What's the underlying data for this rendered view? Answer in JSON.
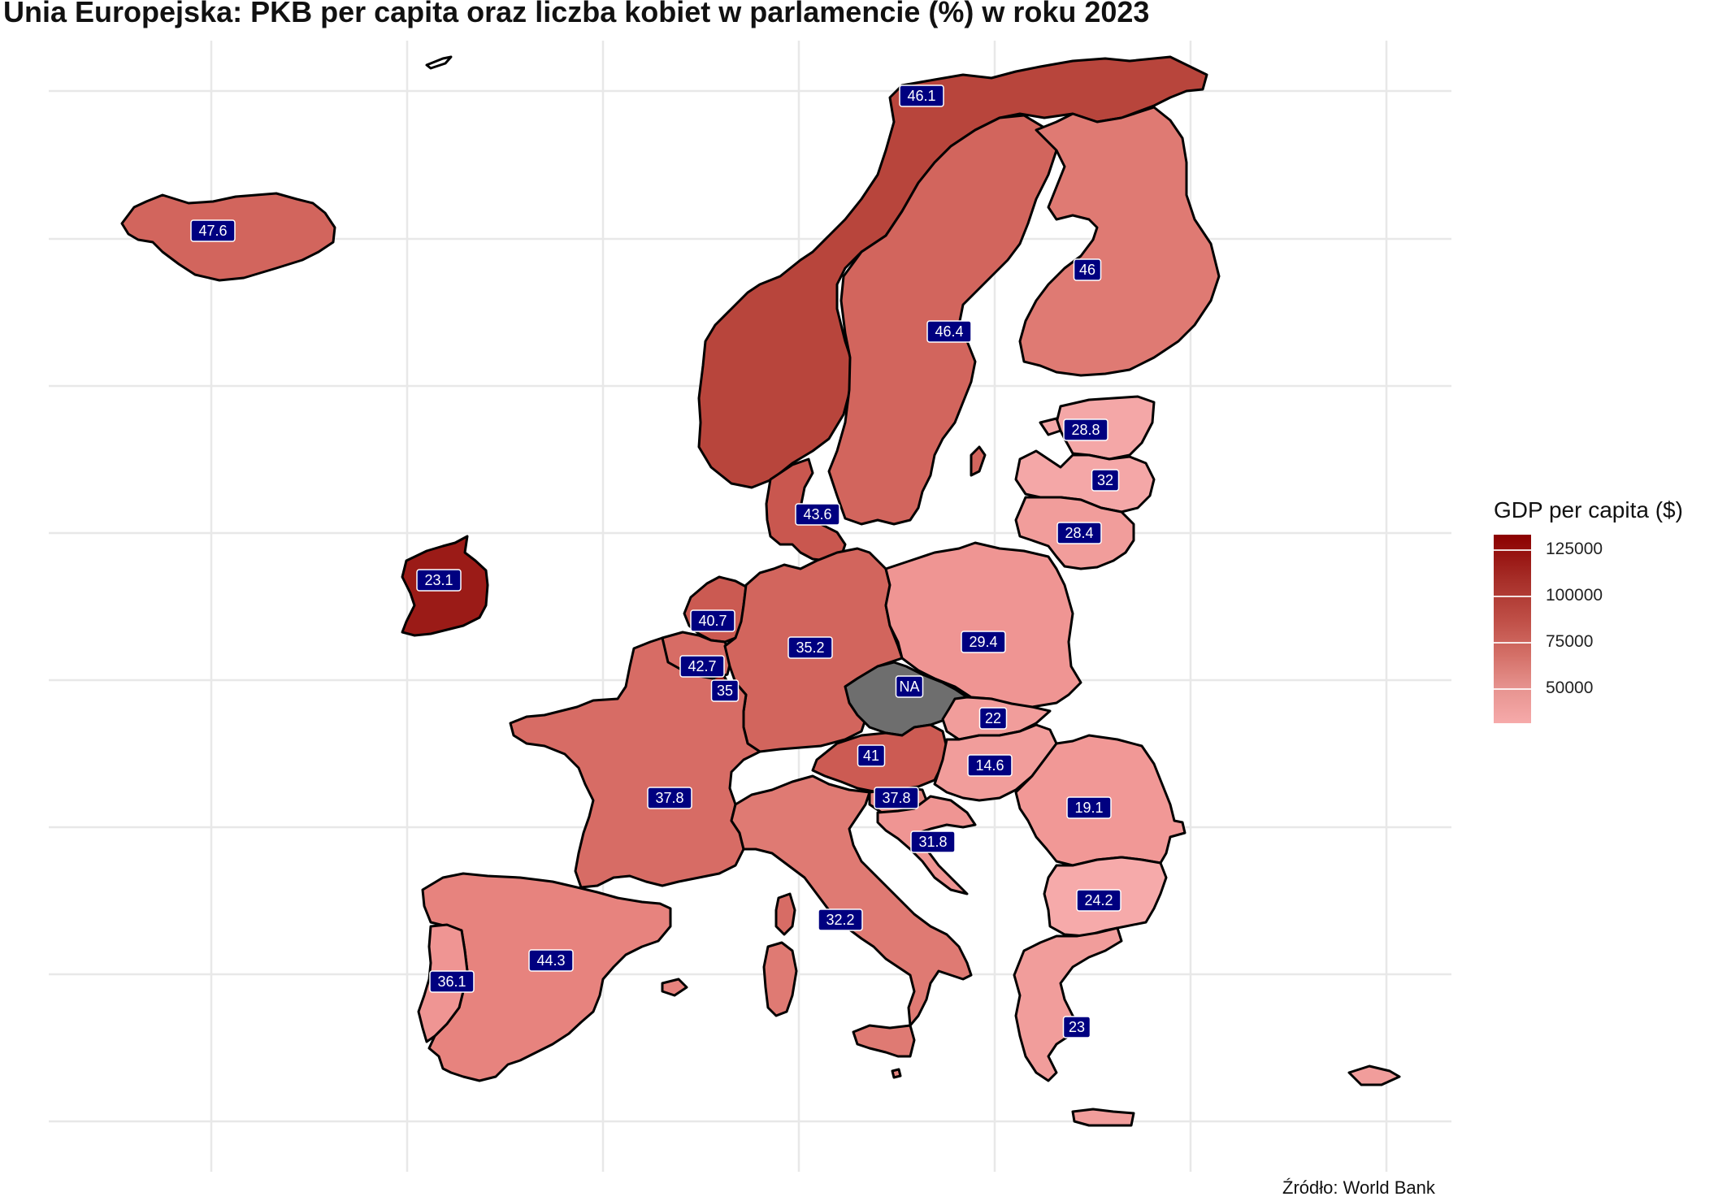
{
  "title": "Unia Europejska: PKB per capita oraz liczba kobiet w parlamencie (%) w roku 2023",
  "caption": "Źródło: World Bank",
  "legend": {
    "title": "GDP per capita ($)",
    "ticks": [
      "125000",
      "100000",
      "75000",
      "50000"
    ],
    "colors": {
      "high": "#8b0000",
      "low": "#f6aaaa",
      "na": "#6e6e6e"
    }
  },
  "countries": [
    {
      "id": "iceland",
      "label": "47.6",
      "fill": "#d2655d"
    },
    {
      "id": "norway",
      "label": "46.1",
      "fill": "#b8453c"
    },
    {
      "id": "sweden",
      "label": "46.4",
      "fill": "#d2655d"
    },
    {
      "id": "finland",
      "label": "46",
      "fill": "#df7a73"
    },
    {
      "id": "estonia",
      "label": "28.8",
      "fill": "#f4a7a7"
    },
    {
      "id": "latvia",
      "label": "32",
      "fill": "#f4a7a7"
    },
    {
      "id": "lithuania",
      "label": "28.4",
      "fill": "#f19d9b"
    },
    {
      "id": "denmark",
      "label": "43.6",
      "fill": "#c9574f"
    },
    {
      "id": "ireland",
      "label": "23.1",
      "fill": "#9b1b17"
    },
    {
      "id": "netherlands",
      "label": "40.7",
      "fill": "#cb5a52"
    },
    {
      "id": "belgium",
      "label": "42.7",
      "fill": "#d76c65"
    },
    {
      "id": "luxembourg",
      "label": "35",
      "fill": "#9b1b17"
    },
    {
      "id": "germany",
      "label": "35.2",
      "fill": "#d2655d"
    },
    {
      "id": "poland",
      "label": "29.4",
      "fill": "#ef9593"
    },
    {
      "id": "czechia",
      "label": "NA",
      "fill": "#6e6e6e"
    },
    {
      "id": "slovakia",
      "label": "22",
      "fill": "#f19d9b"
    },
    {
      "id": "austria",
      "label": "41",
      "fill": "#cc5b53"
    },
    {
      "id": "hungary",
      "label": "14.6",
      "fill": "#f19d9b"
    },
    {
      "id": "romania",
      "label": "19.1",
      "fill": "#f19896"
    },
    {
      "id": "slovenia",
      "label": "37.8",
      "fill": "#e4857f"
    },
    {
      "id": "croatia",
      "label": "31.8",
      "fill": "#ef9593"
    },
    {
      "id": "france",
      "label": "37.8",
      "fill": "#d76c65"
    },
    {
      "id": "italy",
      "label": "32.2",
      "fill": "#df7a73"
    },
    {
      "id": "bulgaria",
      "label": "24.2",
      "fill": "#f6aaaa"
    },
    {
      "id": "greece",
      "label": "23",
      "fill": "#f19d9b"
    },
    {
      "id": "spain",
      "label": "44.3",
      "fill": "#e7837e"
    },
    {
      "id": "portugal",
      "label": "36.1",
      "fill": "#ef9593"
    },
    {
      "id": "cyprus",
      "label": "",
      "fill": "#f19d9b"
    },
    {
      "id": "malta",
      "label": "",
      "fill": "#e4857f"
    }
  ]
}
